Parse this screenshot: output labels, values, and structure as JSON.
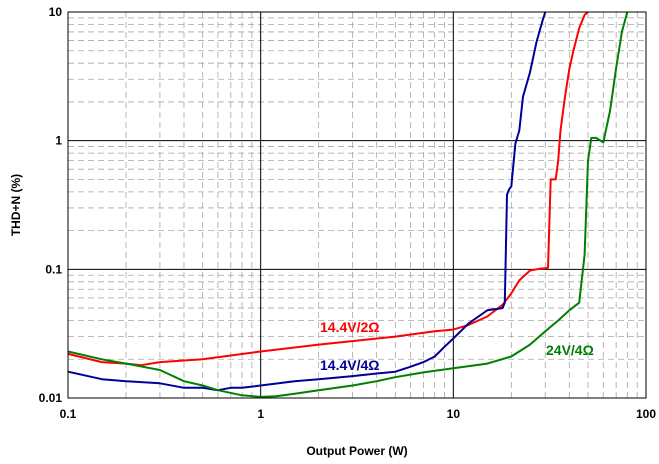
{
  "chart_data": {
    "type": "line",
    "xlabel": "Output Power (W)",
    "ylabel": "THD+N (%)",
    "x_scale": "log",
    "y_scale": "log",
    "xlim": [
      0.1,
      100
    ],
    "ylim": [
      0.01,
      10
    ],
    "grid": true,
    "x_ticks": [
      "0.1",
      "1",
      "10",
      "100"
    ],
    "y_ticks": [
      "0.01",
      "0.1",
      "1",
      "10"
    ],
    "colors": {
      "red": "#ff0000",
      "blue": "#000099",
      "green": "#008000"
    },
    "series": [
      {
        "name": "14.4V/2Ω",
        "color": "#ff0000",
        "x": [
          0.1,
          0.15,
          0.2,
          0.24,
          0.3,
          0.5,
          1,
          2,
          5,
          8,
          10,
          12,
          15,
          18,
          20,
          22,
          25,
          28,
          30,
          31,
          32,
          33,
          34,
          35,
          36,
          38,
          40,
          42,
          45,
          48,
          50
        ],
        "y": [
          0.022,
          0.019,
          0.0185,
          0.018,
          0.019,
          0.02,
          0.023,
          0.026,
          0.03,
          0.033,
          0.034,
          0.037,
          0.043,
          0.053,
          0.065,
          0.082,
          0.098,
          0.101,
          0.102,
          0.103,
          0.5,
          0.5,
          0.5,
          0.7,
          1.2,
          2.2,
          3.6,
          5.0,
          7.5,
          9.5,
          10
        ]
      },
      {
        "name": "14.4V/4Ω",
        "color": "#000099",
        "x": [
          0.1,
          0.15,
          0.2,
          0.3,
          0.4,
          0.5,
          0.6,
          0.7,
          0.8,
          1,
          1.5,
          2,
          3,
          4,
          5,
          6,
          7,
          8,
          9,
          10,
          12,
          15,
          18,
          18.5,
          19,
          19.5,
          20,
          21,
          22,
          23,
          25,
          27,
          29,
          30
        ],
        "y": [
          0.016,
          0.014,
          0.0135,
          0.013,
          0.012,
          0.012,
          0.0115,
          0.012,
          0.012,
          0.0125,
          0.0135,
          0.014,
          0.0148,
          0.0155,
          0.016,
          0.0175,
          0.019,
          0.021,
          0.025,
          0.029,
          0.038,
          0.048,
          0.05,
          0.055,
          0.38,
          0.42,
          0.44,
          0.95,
          1.2,
          2.2,
          3.4,
          5.8,
          8.5,
          10
        ]
      },
      {
        "name": "24V/4Ω",
        "color": "#008000",
        "x": [
          0.1,
          0.15,
          0.2,
          0.3,
          0.4,
          0.5,
          0.6,
          0.8,
          1,
          1.2,
          1.5,
          2,
          3,
          4,
          5,
          7,
          10,
          15,
          20,
          25,
          30,
          35,
          40,
          45,
          48,
          50,
          52,
          55,
          60,
          65,
          70,
          75,
          80
        ],
        "y": [
          0.023,
          0.02,
          0.0185,
          0.0165,
          0.0135,
          0.0125,
          0.0115,
          0.0105,
          0.0102,
          0.0103,
          0.0108,
          0.0115,
          0.0125,
          0.0135,
          0.0145,
          0.0158,
          0.017,
          0.0185,
          0.021,
          0.026,
          0.033,
          0.04,
          0.048,
          0.055,
          0.13,
          0.7,
          1.05,
          1.05,
          0.97,
          1.7,
          3.7,
          7.0,
          10
        ]
      }
    ]
  }
}
